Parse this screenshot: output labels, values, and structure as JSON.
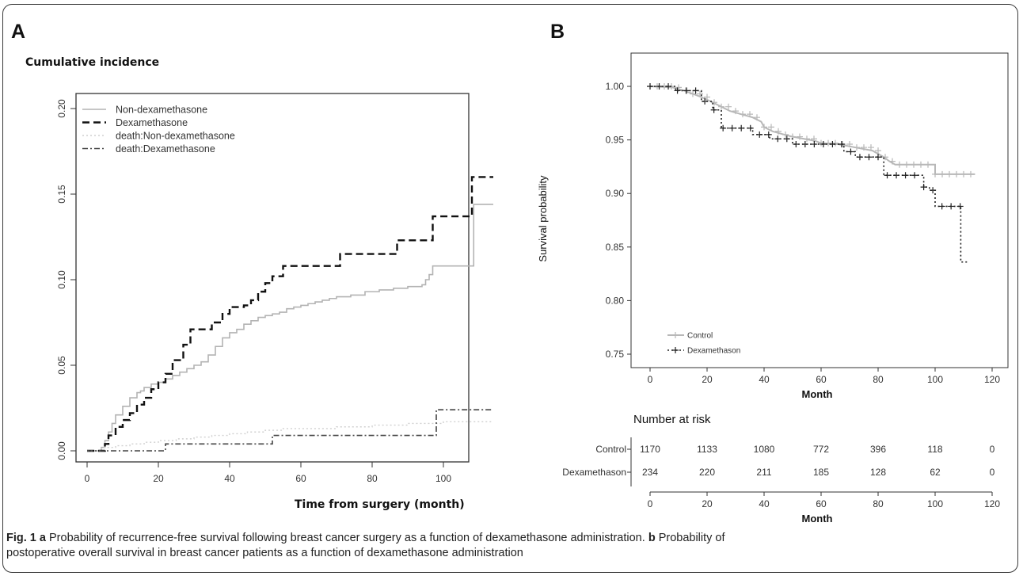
{
  "figure": {
    "panel_a_letter": "A",
    "panel_b_letter": "B",
    "caption": {
      "fig_label": "Fig. 1",
      "a_letter": "a",
      "a_text": "Probability of recurrence-free survival following breast cancer surgery as a function of dexamethasone administration.",
      "b_letter": "b",
      "b_text_line1": "Probability of",
      "b_text_line2": "postoperative overall survival in breast cancer patients as a function of dexamethasone administration"
    }
  },
  "chart_data": [
    {
      "type": "line",
      "title": "Cumulative incidence",
      "xlabel": "Time from surgery (month)",
      "ylabel": "",
      "xlim": [
        0,
        115
      ],
      "ylim": [
        0,
        0.2
      ],
      "x_ticks": [
        "0",
        "20",
        "40",
        "60",
        "80",
        "100"
      ],
      "y_ticks": [
        "0.00",
        "0.05",
        "0.10",
        "0.15",
        "0.20"
      ],
      "legend_position": "top-left",
      "series": [
        {
          "name": "Non-dexamethasone",
          "color": "#b3b3b3",
          "style": "solid",
          "points": [
            [
              0,
              0
            ],
            [
              4,
              0.002
            ],
            [
              5,
              0.006
            ],
            [
              6,
              0.011
            ],
            [
              7,
              0.016
            ],
            [
              8,
              0.021
            ],
            [
              10,
              0.026
            ],
            [
              12,
              0.031
            ],
            [
              14,
              0.034
            ],
            [
              15,
              0.035
            ],
            [
              16,
              0.037
            ],
            [
              18,
              0.039
            ],
            [
              20,
              0.04
            ],
            [
              22,
              0.042
            ],
            [
              24,
              0.044
            ],
            [
              26,
              0.046
            ],
            [
              28,
              0.048
            ],
            [
              30,
              0.05
            ],
            [
              32,
              0.052
            ],
            [
              34,
              0.056
            ],
            [
              36,
              0.061
            ],
            [
              38,
              0.066
            ],
            [
              40,
              0.069
            ],
            [
              42,
              0.071
            ],
            [
              44,
              0.074
            ],
            [
              46,
              0.076
            ],
            [
              48,
              0.078
            ],
            [
              50,
              0.079
            ],
            [
              52,
              0.08
            ],
            [
              54,
              0.081
            ],
            [
              56,
              0.083
            ],
            [
              58,
              0.084
            ],
            [
              60,
              0.085
            ],
            [
              62,
              0.086
            ],
            [
              64,
              0.087
            ],
            [
              66,
              0.088
            ],
            [
              68,
              0.089
            ],
            [
              70,
              0.09
            ],
            [
              74,
              0.091
            ],
            [
              78,
              0.093
            ],
            [
              82,
              0.094
            ],
            [
              86,
              0.095
            ],
            [
              90,
              0.096
            ],
            [
              94,
              0.097
            ],
            [
              95,
              0.1
            ],
            [
              96,
              0.103
            ],
            [
              97,
              0.108
            ],
            [
              108,
              0.108
            ],
            [
              108.5,
              0.144
            ],
            [
              114,
              0.144
            ]
          ]
        },
        {
          "name": "Dexamethasone",
          "color": "#111111",
          "style": "dashed",
          "points": [
            [
              0,
              0
            ],
            [
              5,
              0.004
            ],
            [
              6,
              0.009
            ],
            [
              8,
              0.014
            ],
            [
              10,
              0.018
            ],
            [
              12,
              0.022
            ],
            [
              14,
              0.027
            ],
            [
              16,
              0.031
            ],
            [
              18,
              0.036
            ],
            [
              20,
              0.04
            ],
            [
              22,
              0.045
            ],
            [
              24,
              0.053
            ],
            [
              27,
              0.062
            ],
            [
              29,
              0.071
            ],
            [
              33,
              0.071
            ],
            [
              35,
              0.075
            ],
            [
              38,
              0.08
            ],
            [
              40,
              0.084
            ],
            [
              44,
              0.085
            ],
            [
              46,
              0.088
            ],
            [
              48,
              0.093
            ],
            [
              50,
              0.098
            ],
            [
              52,
              0.102
            ],
            [
              55,
              0.108
            ],
            [
              66,
              0.108
            ],
            [
              71,
              0.115
            ],
            [
              85,
              0.115
            ],
            [
              87,
              0.123
            ],
            [
              96,
              0.123
            ],
            [
              97,
              0.137
            ],
            [
              107,
              0.137
            ],
            [
              108,
              0.16
            ],
            [
              114,
              0.16
            ]
          ]
        },
        {
          "name": "death:Non-dexamethasone",
          "color": "#d0d0d0",
          "style": "dotted",
          "points": [
            [
              0,
              0
            ],
            [
              4,
              0.002
            ],
            [
              8,
              0.003
            ],
            [
              12,
              0.004
            ],
            [
              16,
              0.005
            ],
            [
              20,
              0.006
            ],
            [
              25,
              0.007
            ],
            [
              30,
              0.008
            ],
            [
              35,
              0.009
            ],
            [
              40,
              0.01
            ],
            [
              45,
              0.011
            ],
            [
              50,
              0.012
            ],
            [
              55,
              0.013
            ],
            [
              60,
              0.013
            ],
            [
              65,
              0.013
            ],
            [
              70,
              0.014
            ],
            [
              80,
              0.015
            ],
            [
              90,
              0.016
            ],
            [
              98,
              0.016
            ],
            [
              100,
              0.017
            ],
            [
              114,
              0.017
            ]
          ]
        },
        {
          "name": "death:Dexamethasone",
          "color": "#444444",
          "style": "dashdot",
          "points": [
            [
              0,
              0
            ],
            [
              22,
              0
            ],
            [
              22,
              0.004
            ],
            [
              52,
              0.004
            ],
            [
              52,
              0.009
            ],
            [
              98,
              0.009
            ],
            [
              98,
              0.024
            ],
            [
              114,
              0.024
            ]
          ]
        }
      ]
    },
    {
      "type": "line",
      "title": "",
      "xlabel": "Month",
      "ylabel": "Survival probability",
      "xlim": [
        -2,
        122
      ],
      "ylim": [
        0.74,
        1.005
      ],
      "x_ticks": [
        "0",
        "20",
        "40",
        "60",
        "80",
        "100",
        "120"
      ],
      "y_ticks": [
        "0.75",
        "0.80",
        "0.85",
        "0.90",
        "0.95",
        "1.00"
      ],
      "legend_position": "bottom-left",
      "series": [
        {
          "name": "Control",
          "color": "#b8b8b8",
          "style": "solid",
          "points": [
            [
              0,
              1.0
            ],
            [
              8,
              0.999
            ],
            [
              12,
              0.996
            ],
            [
              15,
              0.993
            ],
            [
              18,
              0.99
            ],
            [
              22,
              0.985
            ],
            [
              25,
              0.981
            ],
            [
              28,
              0.977
            ],
            [
              32,
              0.974
            ],
            [
              36,
              0.971
            ],
            [
              39,
              0.967
            ],
            [
              40,
              0.962
            ],
            [
              43,
              0.958
            ],
            [
              47,
              0.955
            ],
            [
              50,
              0.953
            ],
            [
              54,
              0.951
            ],
            [
              58,
              0.949
            ],
            [
              60,
              0.947
            ],
            [
              66,
              0.946
            ],
            [
              72,
              0.943
            ],
            [
              78,
              0.94
            ],
            [
              82,
              0.934
            ],
            [
              84,
              0.93
            ],
            [
              86,
              0.927
            ],
            [
              90,
              0.927
            ],
            [
              100,
              0.927
            ],
            [
              100,
              0.918
            ],
            [
              114,
              0.918
            ]
          ]
        },
        {
          "name": "Dexamethason",
          "color": "#222222",
          "style": "dotted",
          "points": [
            [
              0,
              1.0
            ],
            [
              9,
              1.0
            ],
            [
              9,
              0.996
            ],
            [
              18,
              0.996
            ],
            [
              18,
              0.986
            ],
            [
              22,
              0.986
            ],
            [
              22,
              0.978
            ],
            [
              25,
              0.978
            ],
            [
              25,
              0.961
            ],
            [
              36,
              0.961
            ],
            [
              36,
              0.955
            ],
            [
              42,
              0.955
            ],
            [
              42,
              0.951
            ],
            [
              50,
              0.951
            ],
            [
              50,
              0.946
            ],
            [
              55,
              0.946
            ],
            [
              68,
              0.946
            ],
            [
              68,
              0.939
            ],
            [
              72,
              0.939
            ],
            [
              72,
              0.934
            ],
            [
              82,
              0.934
            ],
            [
              82,
              0.917
            ],
            [
              96,
              0.917
            ],
            [
              96,
              0.906
            ],
            [
              98,
              0.906
            ],
            [
              98,
              0.903
            ],
            [
              100,
              0.903
            ],
            [
              100,
              0.888
            ],
            [
              109,
              0.888
            ],
            [
              109,
              0.836
            ],
            [
              112,
              0.836
            ]
          ]
        }
      ],
      "risk_table": {
        "title": "Number at risk",
        "times": [
          0,
          20,
          40,
          60,
          80,
          100,
          120
        ],
        "rows": [
          {
            "label": "Control",
            "values": [
              "1170",
              "1133",
              "1080",
              "772",
              "396",
              "118",
              "0"
            ]
          },
          {
            "label": "Dexamethason",
            "values": [
              "234",
              "220",
              "211",
              "185",
              "128",
              "62",
              "0"
            ]
          }
        ],
        "xlabel": "Month",
        "x_ticks": [
          "0",
          "20",
          "40",
          "60",
          "80",
          "100",
          "120"
        ]
      }
    }
  ]
}
